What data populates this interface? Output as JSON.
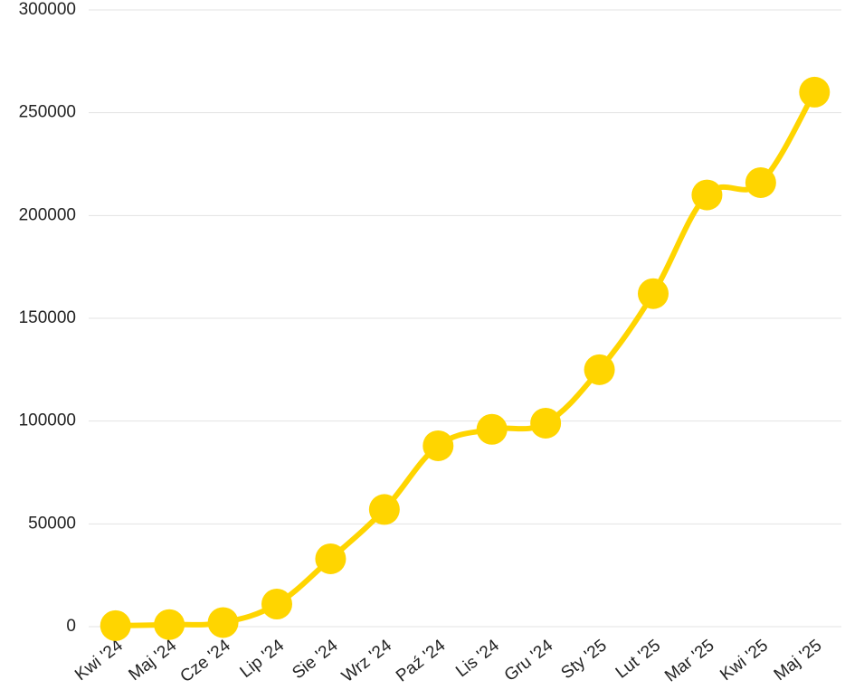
{
  "chart_data": {
    "type": "line",
    "categories": [
      "Kwi '24",
      "Maj '24",
      "Cze '24",
      "Lip '24",
      "Sie '24",
      "Wrz '24",
      "Paź '24",
      "Lis '24",
      "Gru '24",
      "Sty '25",
      "Lut '25",
      "Mar '25",
      "Kwi '25",
      "Maj '25"
    ],
    "values": [
      500,
      1000,
      2000,
      11000,
      33000,
      57000,
      88000,
      96000,
      99000,
      125000,
      162000,
      210000,
      216000,
      260000
    ],
    "color": "#ffd500",
    "ylim": [
      0,
      300000
    ],
    "yticks": [
      0,
      50000,
      100000,
      150000,
      200000,
      250000,
      300000
    ],
    "grid": true
  }
}
